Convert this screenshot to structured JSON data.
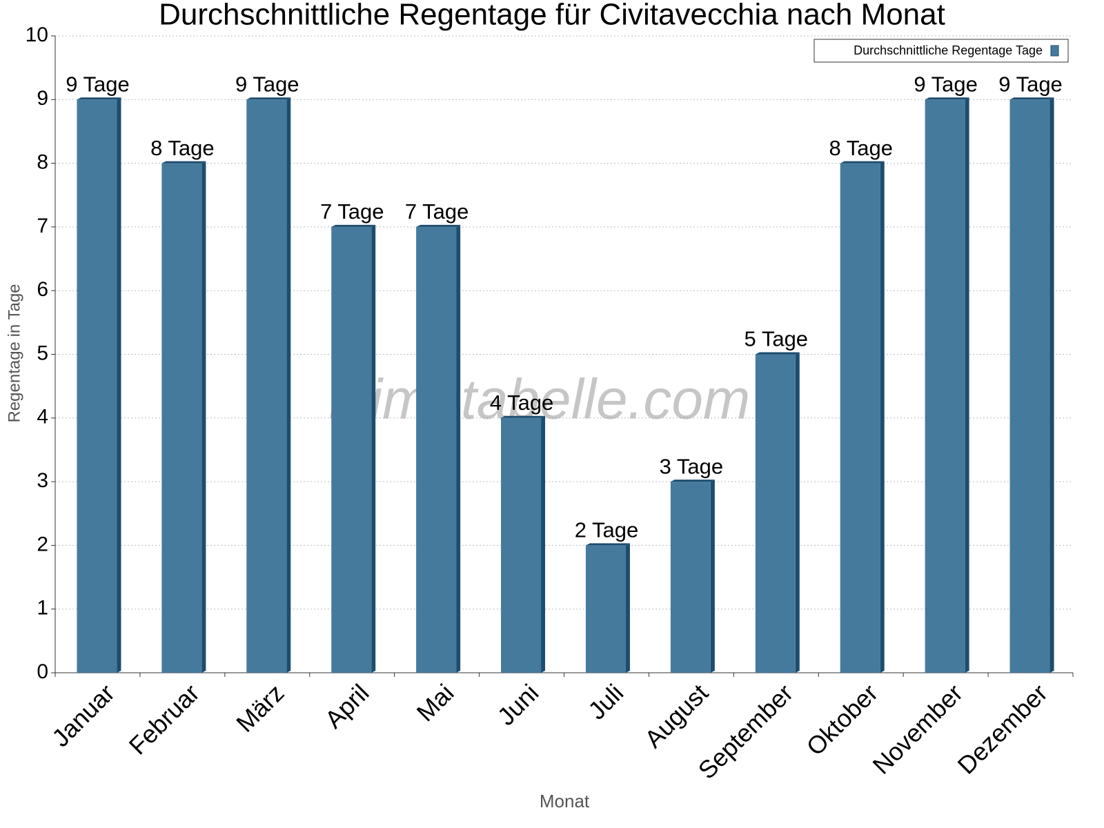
{
  "chart_data": {
    "type": "bar",
    "title": "Durchschnittliche Regentage für Civitavecchia nach Monat",
    "x_label": "Monat",
    "y_label": "Regentage in Tage",
    "watermark": "klimatabelle.com",
    "categories": [
      "Januar",
      "Februar",
      "März",
      "April",
      "Mai",
      "Juni",
      "Juli",
      "August",
      "September",
      "Oktober",
      "November",
      "Dezember"
    ],
    "series": [
      {
        "name": "Durchschnittliche Regentage Tage",
        "color": "#467a9c",
        "values": [
          9,
          8,
          9,
          7,
          7,
          4,
          2,
          3,
          5,
          8,
          9,
          9
        ],
        "value_labels": [
          "9 Tage",
          "8 Tage",
          "9 Tage",
          "7 Tage",
          "7 Tage",
          "4 Tage",
          "2 Tage",
          "3 Tage",
          "5 Tage",
          "8 Tage",
          "9 Tage",
          "9 Tage"
        ]
      }
    ],
    "ylim": [
      0,
      10
    ],
    "yticks": [
      0,
      1,
      2,
      3,
      4,
      5,
      6,
      7,
      8,
      9,
      10
    ],
    "grid": true,
    "legend": "top-right"
  }
}
